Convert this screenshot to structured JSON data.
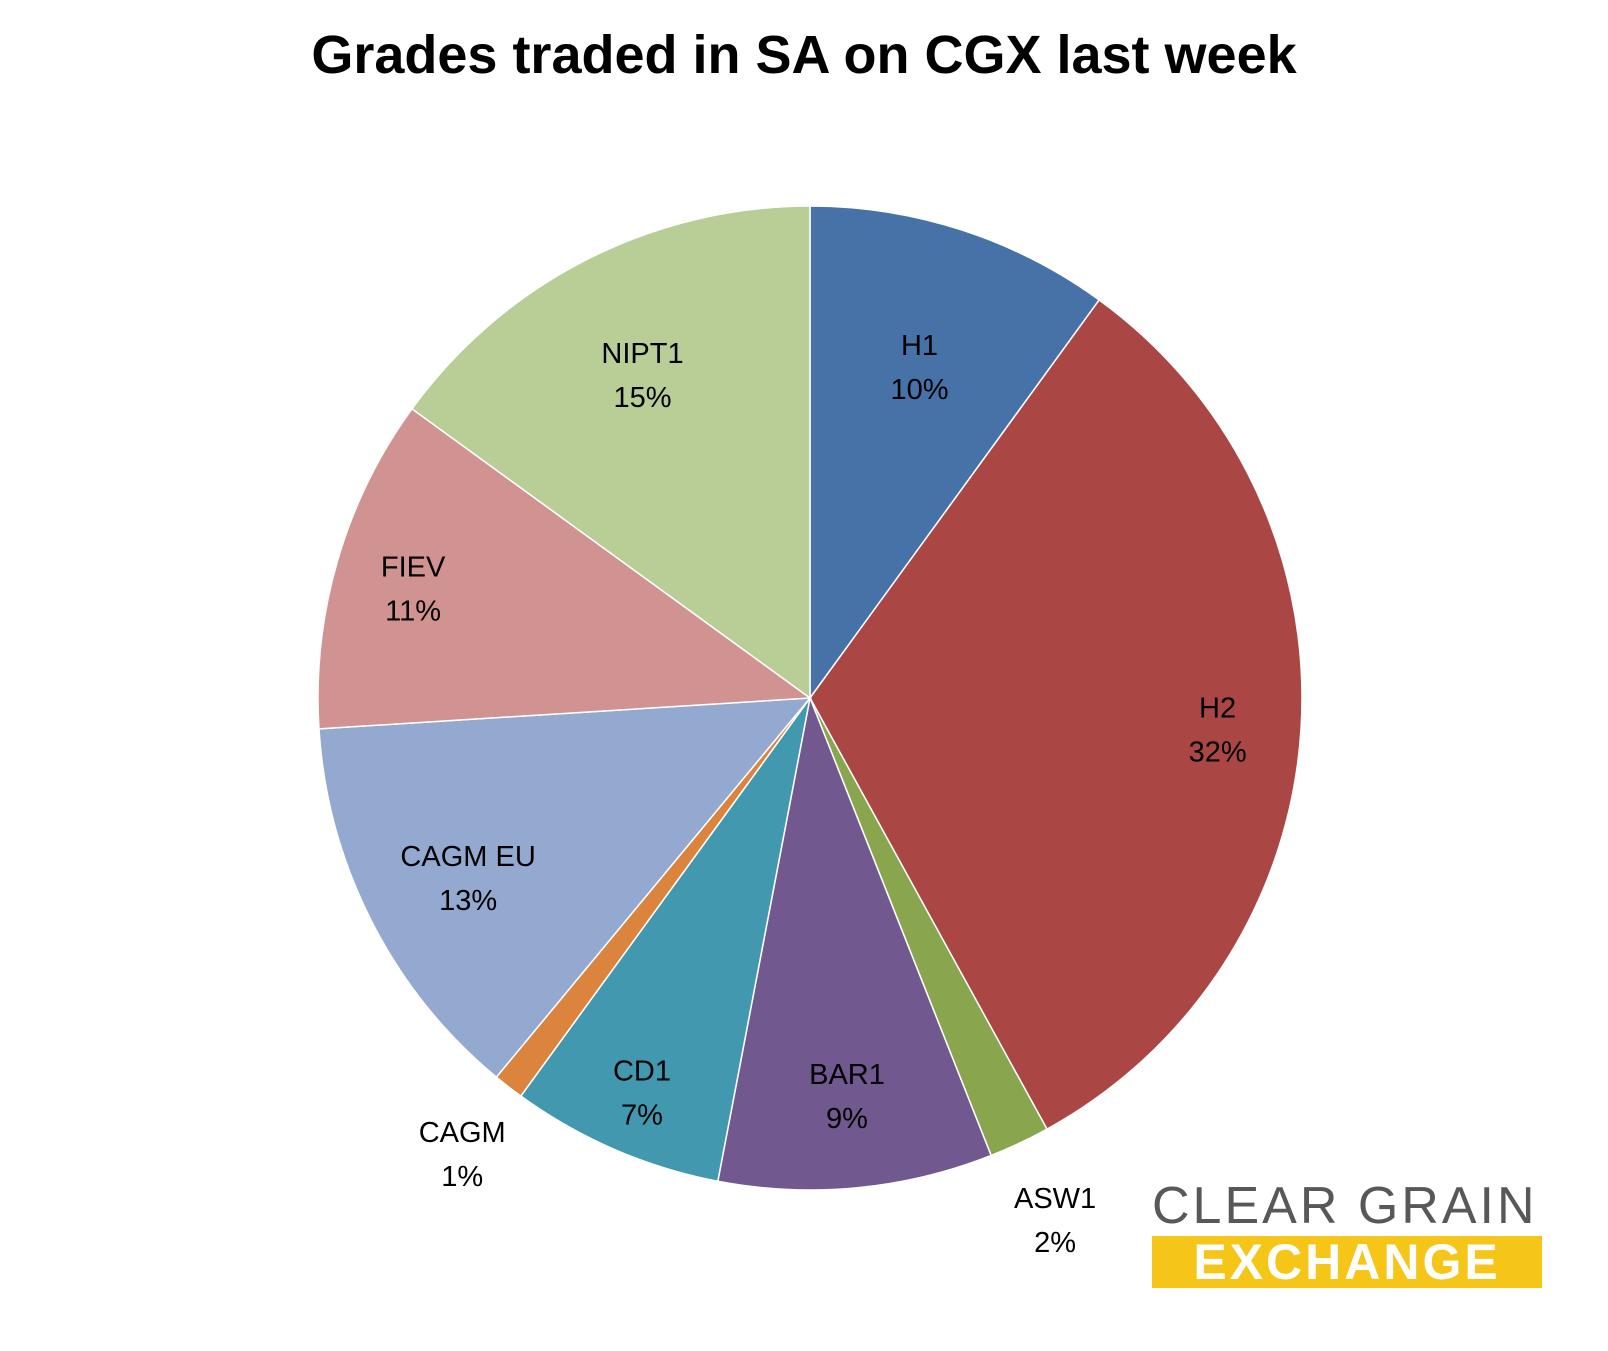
{
  "chart_data": {
    "type": "pie",
    "title": "Grades traded in SA on CGX last week",
    "start_angle_deg": 0,
    "direction": "clockwise",
    "slices": [
      {
        "label": "H1",
        "value": 10,
        "display": "10%",
        "color": "#4672a8"
      },
      {
        "label": "H2",
        "value": 32,
        "display": "32%",
        "color": "#aa4644"
      },
      {
        "label": "ASW1",
        "value": 2,
        "display": "2%",
        "color": "#89a54e"
      },
      {
        "label": "BAR1",
        "value": 9,
        "display": "9%",
        "color": "#71588f"
      },
      {
        "label": "CD1",
        "value": 7,
        "display": "7%",
        "color": "#4198af"
      },
      {
        "label": "CAGM",
        "value": 1,
        "display": "1%",
        "color": "#db843d"
      },
      {
        "label": "CAGM EU",
        "value": 13,
        "display": "13%",
        "color": "#93a9cf"
      },
      {
        "label": "FIEV",
        "value": 11,
        "display": "11%",
        "color": "#d19392"
      },
      {
        "label": "NIPT1",
        "value": 15,
        "display": "15%",
        "color": "#b9cd96"
      }
    ]
  },
  "logo": {
    "line1": "CLEAR GRAIN",
    "line2": "EXCHANGE",
    "accent_color": "#f5c518",
    "text_color": "#58585a"
  }
}
